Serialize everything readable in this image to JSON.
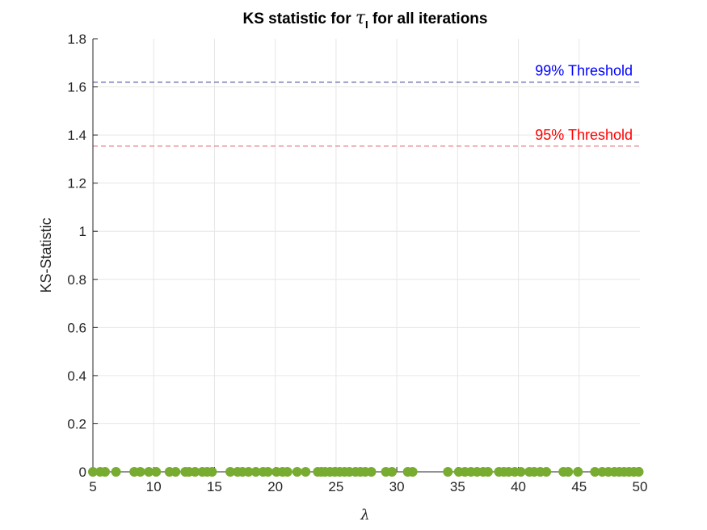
{
  "chart_data": {
    "type": "scatter",
    "title": {
      "prefix": "KS statistic for ",
      "symbol": "τ",
      "subscript": "I",
      "suffix": " for all iterations"
    },
    "xlabel": "λ",
    "ylabel": "KS-Statistic",
    "xlim": [
      5,
      50
    ],
    "ylim": [
      0,
      1.8
    ],
    "xticks": [
      5,
      10,
      15,
      20,
      25,
      30,
      35,
      40,
      45,
      50
    ],
    "yticks": [
      0,
      0.2,
      0.4,
      0.6,
      0.8,
      1,
      1.2,
      1.4,
      1.6,
      1.8
    ],
    "xtick_labels": [
      "5",
      "10",
      "15",
      "20",
      "25",
      "30",
      "35",
      "40",
      "45",
      "50"
    ],
    "ytick_labels": [
      "0",
      "0.2",
      "0.4",
      "0.6",
      "0.8",
      "1",
      "1.2",
      "1.4",
      "1.6",
      "1.8"
    ],
    "grid": true,
    "thresholds": [
      {
        "label": "99% Threshold",
        "value": 1.6196,
        "color": "#0000ff",
        "line_color": "#3a3a8c"
      },
      {
        "label": "95% Threshold",
        "value": 1.3539,
        "color": "#ff0000",
        "line_color": "#e0606a"
      }
    ],
    "series": [
      {
        "marker_color": "#77ac30",
        "x": [
          5.0,
          5.6,
          6.0,
          6.9,
          8.4,
          8.9,
          9.6,
          10.2,
          11.3,
          11.8,
          12.6,
          12.9,
          13.4,
          14.0,
          14.4,
          14.8,
          16.3,
          16.9,
          17.3,
          17.8,
          18.4,
          19.0,
          19.4,
          20.1,
          20.6,
          21.0,
          21.8,
          22.5,
          23.5,
          23.8,
          24.1,
          24.5,
          24.9,
          25.3,
          25.7,
          26.1,
          26.6,
          27.0,
          27.4,
          27.9,
          29.1,
          29.6,
          30.9,
          31.3,
          34.2,
          35.1,
          35.6,
          36.1,
          36.6,
          37.1,
          37.5,
          38.4,
          38.8,
          39.2,
          39.7,
          40.2,
          40.9,
          41.3,
          41.8,
          42.3,
          43.7,
          44.1,
          44.9,
          46.3,
          46.9,
          47.4,
          47.9,
          48.3,
          48.7,
          49.1,
          49.5,
          49.9
        ],
        "values": [
          0,
          0,
          0,
          0,
          0,
          0,
          0,
          0,
          0,
          0,
          0,
          0,
          0,
          0,
          0,
          0,
          0,
          0,
          0,
          0,
          0,
          0,
          0,
          0,
          0,
          0,
          0,
          0,
          0,
          0,
          0,
          0,
          0,
          0,
          0,
          0,
          0,
          0,
          0,
          0,
          0,
          0,
          0,
          0,
          0,
          0,
          0,
          0,
          0,
          0,
          0,
          0,
          0,
          0,
          0,
          0,
          0,
          0,
          0,
          0,
          0,
          0,
          0,
          0,
          0,
          0,
          0,
          0,
          0,
          0,
          0,
          0
        ]
      }
    ]
  }
}
